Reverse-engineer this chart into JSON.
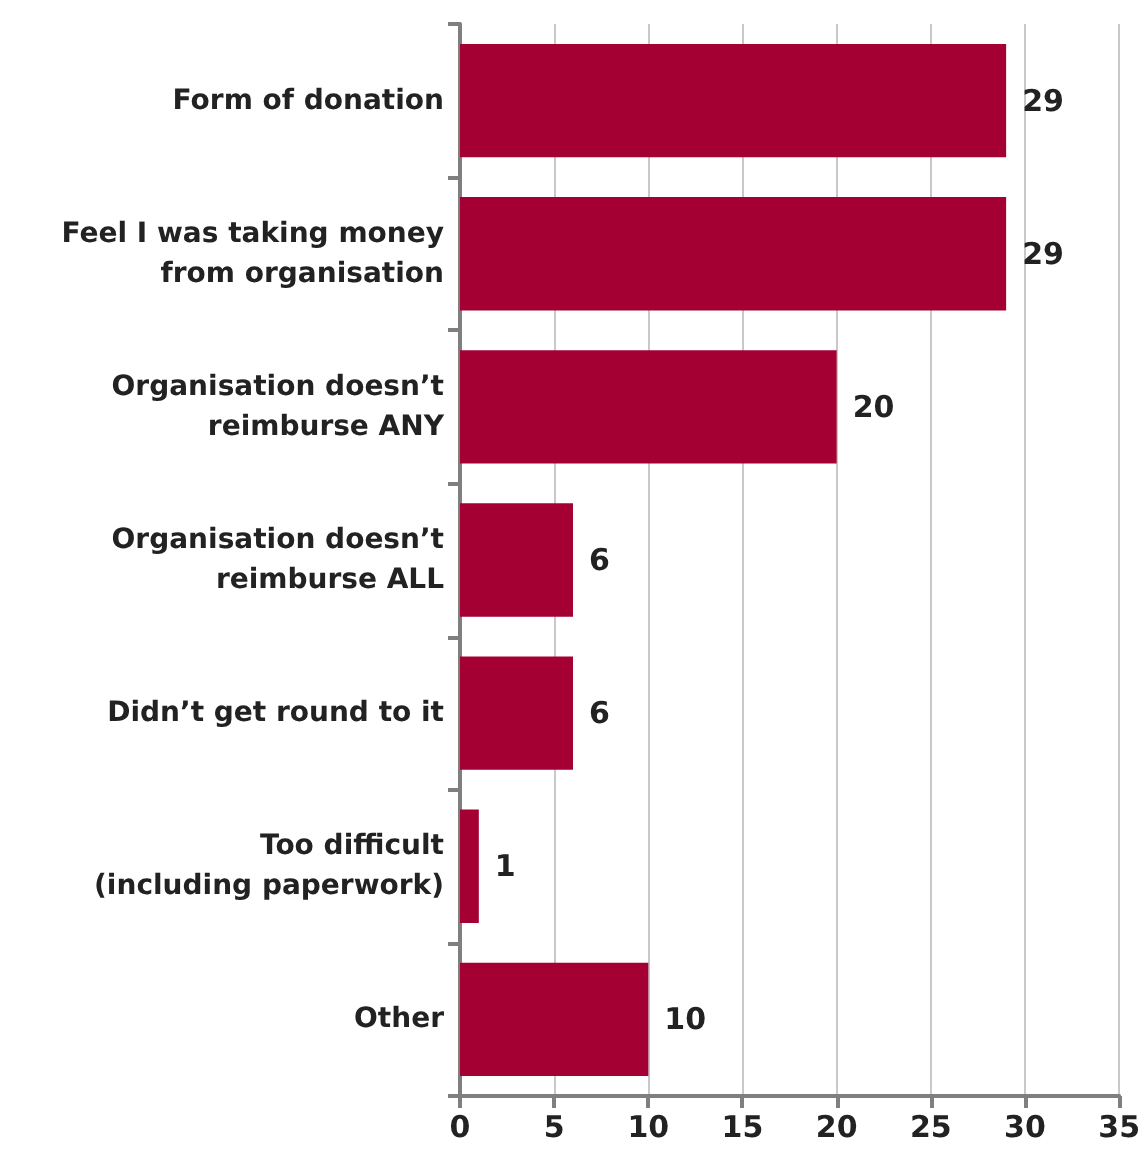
{
  "chart_data": {
    "type": "bar",
    "orientation": "horizontal",
    "categories": [
      "Form of donation",
      "Feel I was taking money\nfrom organisation",
      "Organisation doesn’t\nreimburse ANY",
      "Organisation doesn’t\nreimburse ALL",
      "Didn’t get round to it",
      "Too difficult\n(including paperwork)",
      "Other"
    ],
    "values": [
      29,
      29,
      20,
      6,
      6,
      1,
      10
    ],
    "color": "#a50034",
    "xlim": [
      0,
      35
    ],
    "xticks": [
      0,
      5,
      10,
      15,
      20,
      25,
      30,
      35
    ],
    "grid": "x",
    "data_labels": true
  }
}
